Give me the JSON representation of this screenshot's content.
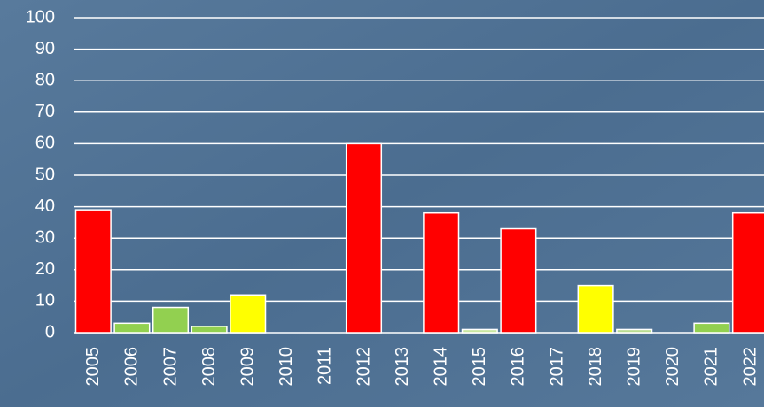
{
  "chart_data": {
    "type": "bar",
    "categories": [
      "2005",
      "2006",
      "2007",
      "2008",
      "2009",
      "2010",
      "2011",
      "2012",
      "2013",
      "2014",
      "2015",
      "2016",
      "2017",
      "2018",
      "2019",
      "2020",
      "2021",
      "2022"
    ],
    "values": [
      39,
      3,
      8,
      2,
      12,
      0,
      0,
      60,
      0,
      38,
      1,
      33,
      0,
      15,
      1,
      0,
      3,
      38
    ],
    "colors": [
      "#ff0000",
      "#92d050",
      "#92d050",
      "#92d050",
      "#ffff00",
      "#92d050",
      "#92d050",
      "#ff0000",
      "#92d050",
      "#ff0000",
      "#c8e6a0",
      "#ff0000",
      "#92d050",
      "#ffff00",
      "#b8dc90",
      "#92d050",
      "#92d050",
      "#ff0000"
    ],
    "ylim": [
      0,
      100
    ],
    "yticks": [
      0,
      10,
      20,
      30,
      40,
      50,
      60,
      70,
      80,
      90,
      100
    ],
    "grid": true
  }
}
